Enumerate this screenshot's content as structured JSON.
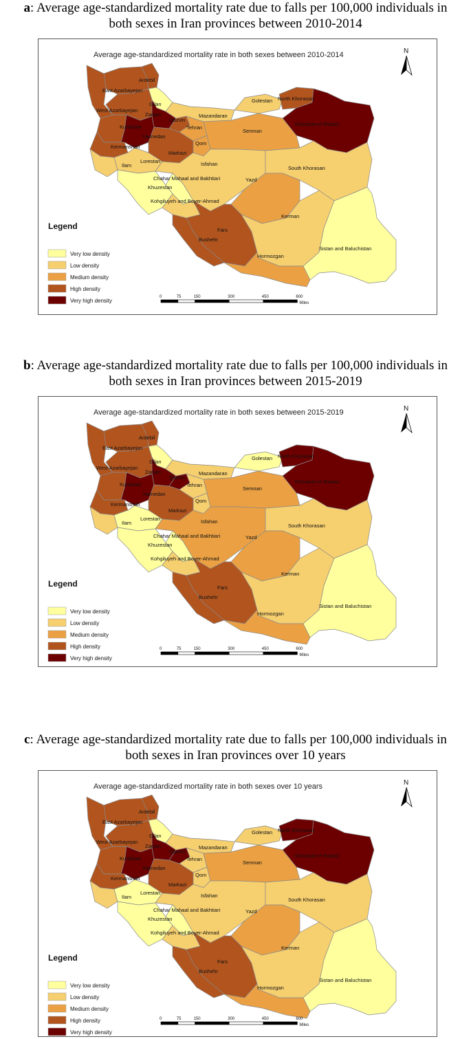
{
  "colors": {
    "very_low": "#ffff9e",
    "low": "#f6cf6f",
    "medium": "#eba143",
    "high": "#b1541e",
    "very_high": "#6c0000",
    "border": "#8a8a8a"
  },
  "panels": [
    {
      "caption_letter": "a",
      "caption_line1": ": Average age-standardized mortality rate due to falls per 100,000 individuals in",
      "caption_line2": "both sexes in Iran provinces between 2010-2014",
      "map_title": "Average age-standardized mortality rate in both sexes between 2010-2014",
      "north_label": "N",
      "legend_title": "Legend",
      "legend": [
        "Very low density",
        "Low density",
        "Medium density",
        "High density",
        "Very high density"
      ],
      "scale_ticks": [
        "0",
        "75",
        "150",
        "300",
        "450",
        "600"
      ],
      "scale_unit": "Miles",
      "provinces": {
        "East Azarbayejan": "high",
        "Ardebil": "high",
        "West Azarbayejan": "high",
        "Zanjan": "high",
        "Gilan": "very_low",
        "Mazandaran": "low",
        "Golestan": "low",
        "North Khorasan": "high",
        "Khorasan-e-Razavi": "very_high",
        "Semnan": "medium",
        "Tehran": "medium",
        "Qazvin": "very_high",
        "Alborz": "high",
        "Qom": "medium",
        "Markazi": "high",
        "Hamedan": "very_high",
        "Kurdistan": "high",
        "Kermanshah": "high",
        "Ilam": "low",
        "Lorestan": "low",
        "Isfahan": "low",
        "South Khorasan": "low",
        "Yazd": "medium",
        "Chahar Mahaal and Bakhtiari": "very_low",
        "Khuzestan": "very_low",
        "Kohgiluyeh and Boyer-Ahmad": "low",
        "Fars": "high",
        "Bushehr": "high",
        "Kerman": "low",
        "Hormozgan": "medium",
        "Sistan and Baluchistan": "very_low"
      }
    },
    {
      "caption_letter": "b",
      "caption_line1": ": Average age-standardized mortality rate due to falls per 100,000 individuals in",
      "caption_line2": "both sexes in Iran provinces between 2015-2019",
      "map_title": "Average age-standardized mortality rate in both sexes between 2015-2019",
      "north_label": "N",
      "legend_title": "Legend",
      "legend": [
        "Very low density",
        "Low density",
        "Medium density",
        "High density",
        "Very high density"
      ],
      "scale_ticks": [
        "0",
        "75",
        "150",
        "300",
        "450",
        "600"
      ],
      "scale_unit": "Miles",
      "provinces": {
        "East Azarbayejan": "high",
        "Ardebil": "high",
        "West Azarbayejan": "high",
        "Zanjan": "high",
        "Gilan": "very_low",
        "Mazandaran": "low",
        "Golestan": "very_low",
        "North Khorasan": "very_high",
        "Khorasan-e-Razavi": "very_high",
        "Semnan": "medium",
        "Tehran": "low",
        "Qazvin": "very_high",
        "Alborz": "very_high",
        "Qom": "low",
        "Markazi": "high",
        "Hamedan": "very_high",
        "Kurdistan": "high",
        "Kermanshah": "high",
        "Ilam": "low",
        "Lorestan": "very_low",
        "Isfahan": "medium",
        "South Khorasan": "low",
        "Yazd": "medium",
        "Chahar Mahaal and Bakhtiari": "very_low",
        "Khuzestan": "very_low",
        "Kohgiluyeh and Boyer-Ahmad": "low",
        "Fars": "high",
        "Bushehr": "high",
        "Kerman": "low",
        "Hormozgan": "medium",
        "Sistan and Baluchistan": "very_low"
      }
    },
    {
      "caption_letter": "c",
      "caption_line1": ": Average age-standardized mortality rate due to falls per 100,000 individuals in",
      "caption_line2": "both sexes in Iran provinces over 10 years",
      "map_title": "Average age-standardized mortality rate in both sexes over 10 years",
      "north_label": "N",
      "legend_title": "Legend",
      "legend": [
        "Very low density",
        "Low density",
        "Medium density",
        "High density",
        "Very high density"
      ],
      "scale_ticks": [
        "0",
        "75",
        "150",
        "300",
        "450",
        "600"
      ],
      "scale_unit": "Miles",
      "provinces": {
        "East Azarbayejan": "high",
        "Ardebil": "high",
        "West Azarbayejan": "high",
        "Zanjan": "high",
        "Gilan": "very_low",
        "Mazandaran": "low",
        "Golestan": "low",
        "North Khorasan": "very_high",
        "Khorasan-e-Razavi": "very_high",
        "Semnan": "medium",
        "Tehran": "low",
        "Qazvin": "very_high",
        "Alborz": "very_high",
        "Qom": "low",
        "Markazi": "high",
        "Hamedan": "very_high",
        "Kurdistan": "high",
        "Kermanshah": "high",
        "Ilam": "low",
        "Lorestan": "very_low",
        "Isfahan": "low",
        "South Khorasan": "low",
        "Yazd": "medium",
        "Chahar Mahaal and Bakhtiari": "very_low",
        "Khuzestan": "very_low",
        "Kohgiluyeh and Boyer-Ahmad": "low",
        "Fars": "high",
        "Bushehr": "high",
        "Kerman": "low",
        "Hormozgan": "medium",
        "Sistan and Baluchistan": "very_low"
      }
    }
  ]
}
